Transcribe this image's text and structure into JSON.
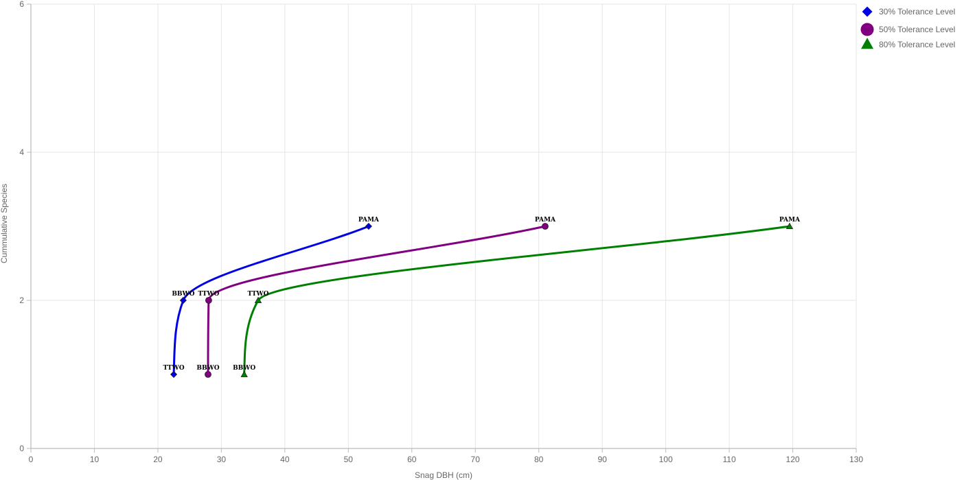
{
  "chart_data": {
    "type": "line",
    "title": "",
    "xlabel": "Snag DBH (cm)",
    "ylabel": "Cummulative Species",
    "xlim": [
      0,
      130
    ],
    "ylim": [
      0,
      6
    ],
    "x_ticks": [
      0,
      10,
      20,
      30,
      40,
      50,
      60,
      70,
      80,
      90,
      100,
      110,
      120,
      130
    ],
    "y_ticks": [
      0,
      2,
      4,
      6
    ],
    "grid": true,
    "legend_position": "top-right",
    "series": [
      {
        "name": "30% Tolerance Level",
        "color": "#0000e6",
        "marker": "diamond",
        "points": [
          {
            "x": 22.5,
            "y": 1,
            "label": "TTWO"
          },
          {
            "x": 24,
            "y": 2,
            "label": "BBWO"
          },
          {
            "x": 53.2,
            "y": 3,
            "label": "PAMA"
          }
        ]
      },
      {
        "name": "50% Tolerance Level",
        "color": "#800080",
        "marker": "circle",
        "points": [
          {
            "x": 27.9,
            "y": 1,
            "label": "BBWO"
          },
          {
            "x": 28,
            "y": 2,
            "label": "TTWO"
          },
          {
            "x": 81,
            "y": 3,
            "label": "PAMA"
          }
        ]
      },
      {
        "name": "80% Tolerance Level",
        "color": "#008000",
        "marker": "triangle",
        "points": [
          {
            "x": 33.6,
            "y": 1,
            "label": "BBWO"
          },
          {
            "x": 35.8,
            "y": 2,
            "label": "TTWO"
          },
          {
            "x": 119.5,
            "y": 3,
            "label": "PAMA"
          }
        ]
      }
    ]
  }
}
